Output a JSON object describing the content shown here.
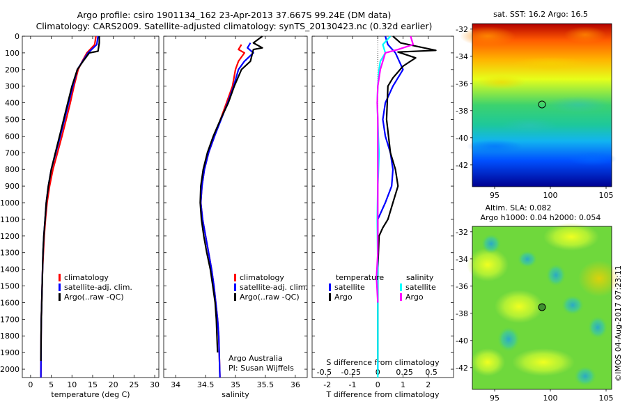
{
  "header": {
    "line1": "Argo profile: csiro 1901134_162 23-Apr-2013 37.667S 99.24E (DM data)",
    "line2": "Climatology: CARS2009. Satellite-adjusted climatology: synTS_20130423.nc (0.32d earlier)"
  },
  "credits": {
    "line1": "Argo Australia",
    "line2": "PI: Susan Wijffels",
    "imos": "©IMOS 04-Aug-2017 07:23:11"
  },
  "map_titles": {
    "sst": "sat. SST: 16.2 Argo: 16.5",
    "sla1": "Altim. SLA: 0.082",
    "sla2": "Argo h1000: 0.04 h2000: 0.054"
  },
  "colors": {
    "climatology": "#ff0000",
    "satellite": "#0000ff",
    "argo": "#000000",
    "salinity_satellite": "#00ffff",
    "salinity_argo": "#ff00ff"
  },
  "chart_data": [
    {
      "type": "line",
      "panel": "temperature",
      "xlabel": "temperature (deg C)",
      "ylabel": "",
      "xlim": [
        -2,
        31
      ],
      "ylim": [
        2050,
        0
      ],
      "xticks": [
        0,
        5,
        10,
        15,
        20,
        25,
        30
      ],
      "yticks": [
        0,
        100,
        200,
        300,
        400,
        500,
        600,
        700,
        800,
        900,
        1000,
        1100,
        1200,
        1300,
        1400,
        1500,
        1600,
        1700,
        1800,
        1900,
        2000
      ],
      "legend": {
        "placement": "lower-center",
        "entries": [
          "climatology",
          "satellite-adj. clim.",
          "Argo(..raw -QC)"
        ]
      },
      "series": [
        {
          "name": "climatology",
          "x": [
            15.8,
            15.5,
            13.6,
            12.5,
            11.5,
            10.5,
            9.6,
            8.6,
            7.6,
            6.5,
            5.4,
            4.6,
            4.0,
            3.6,
            3.3,
            3.1,
            2.9,
            2.8,
            2.7,
            2.6,
            2.55,
            2.5
          ],
          "y": [
            0,
            50,
            100,
            150,
            200,
            300,
            400,
            500,
            600,
            700,
            800,
            900,
            1000,
            1100,
            1200,
            1300,
            1400,
            1500,
            1600,
            1700,
            1800,
            2050
          ]
        },
        {
          "name": "satellite-adj. clim.",
          "x": [
            16.3,
            16.0,
            13.9,
            12.6,
            11.3,
            10.2,
            9.2,
            8.2,
            7.2,
            6.1,
            5.0,
            4.3,
            3.8,
            3.5,
            3.2,
            3.0,
            2.9,
            2.8,
            2.7,
            2.6,
            2.55,
            2.5
          ],
          "y": [
            0,
            50,
            100,
            150,
            200,
            300,
            400,
            500,
            600,
            700,
            800,
            900,
            1000,
            1100,
            1200,
            1300,
            1400,
            1500,
            1600,
            1700,
            1800,
            2050
          ]
        },
        {
          "name": "Argo(..raw -QC)",
          "x": [
            16.6,
            16.6,
            16.3,
            14.2,
            12.7,
            11.3,
            10.0,
            9.0,
            8.0,
            7.0,
            6.0,
            5.0,
            4.3,
            3.8,
            3.5,
            3.2,
            3.0,
            2.9,
            2.8,
            2.7,
            2.6,
            2.55,
            2.5
          ],
          "y": [
            0,
            40,
            90,
            100,
            150,
            200,
            300,
            400,
            500,
            600,
            700,
            800,
            900,
            1000,
            1100,
            1200,
            1300,
            1400,
            1500,
            1600,
            1700,
            1800,
            1950
          ]
        }
      ]
    },
    {
      "type": "line",
      "panel": "salinity",
      "xlabel": "salinity",
      "ylabel": "",
      "xlim": [
        33.8,
        36.2
      ],
      "ylim": [
        2050,
        0
      ],
      "xticks": [
        34,
        34.5,
        35,
        35.5,
        36
      ],
      "legend": {
        "placement": "lower-right",
        "entries": [
          "climatology",
          "satellite-adj. clim.",
          "Argo(..raw -QC)"
        ]
      },
      "series": [
        {
          "name": "climatology",
          "x": [
            35.1,
            35.05,
            35.15,
            35.05,
            35.0,
            34.95,
            34.85,
            34.75,
            34.65,
            34.55,
            34.48,
            34.44,
            34.42,
            34.45,
            34.5,
            34.55,
            34.6,
            34.64,
            34.67,
            34.7,
            34.72,
            34.74
          ],
          "y": [
            50,
            80,
            100,
            150,
            200,
            300,
            400,
            500,
            600,
            700,
            800,
            900,
            1000,
            1100,
            1200,
            1300,
            1400,
            1500,
            1600,
            1700,
            1800,
            2050
          ]
        },
        {
          "name": "satellite-adj. clim.",
          "x": [
            35.25,
            35.2,
            35.3,
            35.15,
            35.05,
            34.97,
            34.87,
            34.76,
            34.65,
            34.55,
            34.48,
            34.44,
            34.42,
            34.45,
            34.5,
            34.55,
            34.6,
            34.64,
            34.67,
            34.7,
            34.72,
            34.74
          ],
          "y": [
            40,
            70,
            100,
            150,
            200,
            300,
            400,
            500,
            600,
            700,
            800,
            900,
            1000,
            1100,
            1200,
            1300,
            1400,
            1500,
            1600,
            1700,
            1800,
            2050
          ]
        },
        {
          "name": "Argo(..raw -QC)",
          "x": [
            35.45,
            35.3,
            35.45,
            35.3,
            35.25,
            35.1,
            34.98,
            34.88,
            34.75,
            34.63,
            34.53,
            34.46,
            34.42,
            34.41,
            34.43,
            34.47,
            34.52,
            34.58,
            34.62,
            34.66,
            34.68,
            34.7
          ],
          "y": [
            0,
            40,
            70,
            80,
            150,
            200,
            300,
            400,
            500,
            600,
            700,
            800,
            900,
            1000,
            1100,
            1200,
            1300,
            1400,
            1500,
            1600,
            1700,
            1900
          ]
        }
      ]
    },
    {
      "type": "line",
      "panel": "difference",
      "xlabel": "T difference from climatology",
      "x2label": "S difference from climatology",
      "xlim": [
        -2.6,
        3.0
      ],
      "ylim": [
        2050,
        0
      ],
      "xticks": [
        -2,
        -1,
        0,
        1,
        2
      ],
      "x2ticks": [
        {
          "v": -0.5,
          "label": "-0.5"
        },
        {
          "v": -0.25,
          "label": "-0.25"
        },
        {
          "v": 0,
          "label": "0"
        },
        {
          "v": 0.25,
          "label": "0.25"
        },
        {
          "v": 0.5,
          "label": "0.5"
        }
      ],
      "legend": {
        "placement": "lower-center",
        "temperature": "temperature",
        "salinity": "salinity",
        "entries": [
          "satellite",
          "Argo",
          "satellite",
          "Argo"
        ]
      },
      "series": [
        {
          "name": "temperature satellite",
          "x": [
            0.3,
            0.4,
            0.7,
            1.0,
            0.6,
            0.3,
            0.2,
            0.3,
            0.5,
            0.6,
            0.55,
            0.3,
            0.0,
            0.0,
            0.0,
            0.0,
            0.0
          ],
          "y": [
            0,
            50,
            100,
            200,
            300,
            400,
            500,
            600,
            700,
            800,
            900,
            1000,
            1100,
            1200,
            1400,
            1600,
            2000
          ]
        },
        {
          "name": "temperature Argo",
          "x": [
            0.6,
            0.9,
            2.3,
            0.8,
            1.5,
            1.0,
            0.6,
            0.4,
            0.35,
            0.5,
            0.7,
            0.8,
            0.6,
            0.4,
            0.2,
            0.05,
            0.0,
            0.0,
            0.0
          ],
          "y": [
            0,
            40,
            85,
            95,
            130,
            180,
            250,
            300,
            500,
            700,
            800,
            900,
            1000,
            1100,
            1150,
            1200,
            1400,
            1700,
            1950
          ]
        },
        {
          "name": "salinity satellite",
          "x": [
            0.5,
            0.2,
            0.3,
            0.1,
            0.05,
            0.0,
            -0.02,
            0.0,
            0.02,
            0.05,
            0.03,
            0.0,
            -0.02,
            0.0,
            0.0,
            0.0
          ],
          "y": [
            0,
            50,
            100,
            150,
            200,
            300,
            400,
            500,
            600,
            700,
            800,
            900,
            1100,
            1400,
            1700,
            2050
          ]
        },
        {
          "name": "salinity Argo",
          "x": [
            1.3,
            1.4,
            0.8,
            0.3,
            0.2,
            0.1,
            0.0,
            -0.02,
            0.0,
            0.0,
            0.0,
            0.0,
            -0.05,
            0.0
          ],
          "y": [
            0,
            50,
            80,
            100,
            150,
            200,
            300,
            400,
            500,
            800,
            1100,
            1300,
            1450,
            1600
          ]
        }
      ]
    },
    {
      "type": "heatmap",
      "panel": "sst-map",
      "title": "sat. SST: 16.2 Argo: 16.5",
      "xlim": [
        93,
        105.5
      ],
      "ylim": [
        -43.6,
        -31.6
      ],
      "xticks": [
        95,
        100,
        105
      ],
      "yticks": [
        -32,
        -34,
        -36,
        -38,
        -40,
        -42
      ],
      "marker": {
        "lon": 99.24,
        "lat": -37.667
      }
    },
    {
      "type": "heatmap",
      "panel": "sla-map",
      "title": "Altim. SLA: 0.082",
      "xlim": [
        93,
        105.5
      ],
      "ylim": [
        -43.6,
        -31.6
      ],
      "xticks": [
        95,
        100,
        105
      ],
      "yticks": [
        -32,
        -34,
        -36,
        -38,
        -40,
        -42
      ],
      "marker": {
        "lon": 99.24,
        "lat": -37.667
      }
    }
  ]
}
